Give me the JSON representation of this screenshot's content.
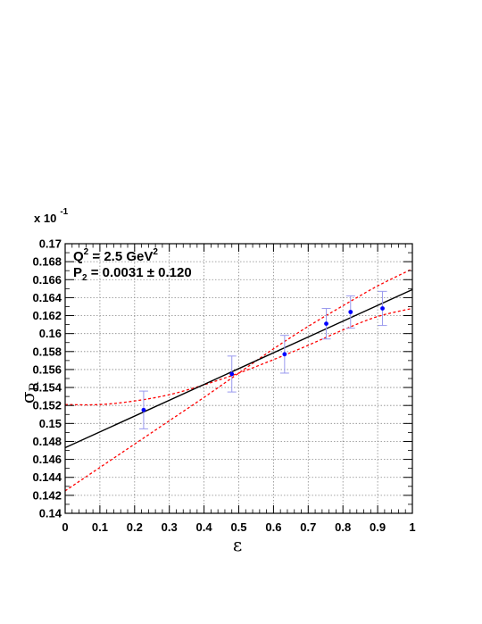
{
  "chart_data": {
    "type": "scatter",
    "title": "",
    "xlabel": "ε",
    "ylabel": {
      "symbol": "σ",
      "subscript": "R"
    },
    "y_multiplier": {
      "base": "x 10",
      "exponent": "-1"
    },
    "xlim": [
      0,
      1
    ],
    "ylim": [
      0.14,
      0.17
    ],
    "x_ticks": [
      "0",
      "0.1",
      "0.2",
      "0.3",
      "0.4",
      "0.5",
      "0.6",
      "0.7",
      "0.8",
      "0.9",
      "1"
    ],
    "y_ticks": [
      "0.14",
      "0.142",
      "0.144",
      "0.146",
      "0.148",
      "0.15",
      "0.152",
      "0.154",
      "0.156",
      "0.158",
      "0.16",
      "0.162",
      "0.164",
      "0.166",
      "0.168",
      "0.17"
    ],
    "grid": true,
    "annotation": {
      "q2_label": "Q",
      "q2_exp": "2",
      "q2_value": " = 2.5 GeV",
      "q2_unit_exp": "2",
      "p2_label": "P",
      "p2_sub": "2",
      "p2_value": " = 0.0031 ± 0.120"
    },
    "points": [
      {
        "x": 0.226,
        "y": 0.1515,
        "err": 0.0021
      },
      {
        "x": 0.48,
        "y": 0.1555,
        "err": 0.002
      },
      {
        "x": 0.632,
        "y": 0.1577,
        "err": 0.0021
      },
      {
        "x": 0.752,
        "y": 0.1611,
        "err": 0.0017
      },
      {
        "x": 0.822,
        "y": 0.1624,
        "err": 0.0018
      },
      {
        "x": 0.914,
        "y": 0.1628,
        "err": 0.0019
      }
    ],
    "fit_line": {
      "x": [
        0,
        1
      ],
      "y": [
        0.1473,
        0.1649
      ],
      "color": "#000000"
    },
    "band_upper": {
      "x": [
        0,
        0.1,
        0.2,
        0.3,
        0.4,
        0.5,
        0.6,
        0.7,
        0.8,
        0.9,
        1
      ],
      "y": [
        0.1425,
        0.1451,
        0.1477,
        0.1503,
        0.1529,
        0.1556,
        0.1583,
        0.1608,
        0.1631,
        0.1653,
        0.1672
      ],
      "color": "#ff0000"
    },
    "band_lower": {
      "x": [
        0,
        0.1,
        0.2,
        0.3,
        0.4,
        0.5,
        0.6,
        0.7,
        0.8,
        0.9,
        1
      ],
      "y": [
        0.1521,
        0.1521,
        0.1525,
        0.1532,
        0.1543,
        0.1556,
        0.1571,
        0.1587,
        0.1604,
        0.1619,
        0.1628
      ],
      "color": "#ff0000"
    },
    "point_color": "#0000ff",
    "error_color": "#9999ee"
  }
}
